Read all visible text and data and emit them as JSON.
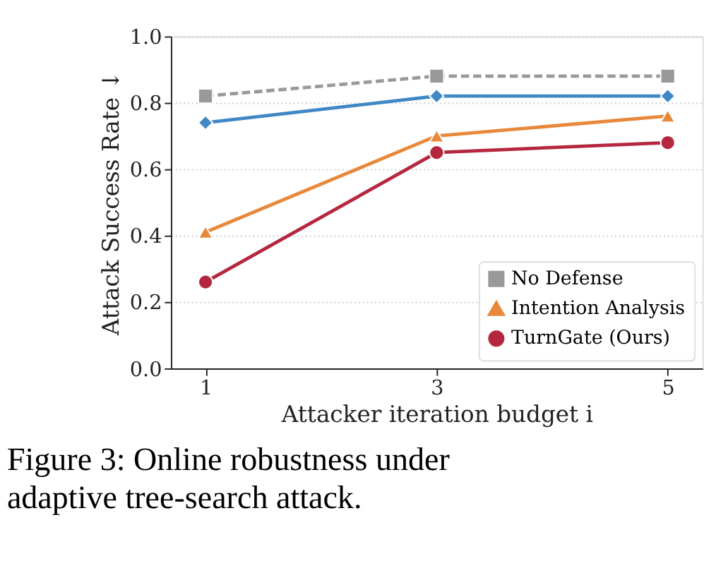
{
  "chart_data": {
    "type": "line",
    "xlabel": "Attacker iteration budget i",
    "ylabel": "Attack Success Rate ↓",
    "x": [
      1,
      3,
      5
    ],
    "xlim": [
      0.7,
      5.3
    ],
    "xticks": [
      1,
      3,
      5
    ],
    "ylim": [
      0,
      1
    ],
    "yticks": [
      {
        "value": 0,
        "label": "0.0"
      },
      {
        "value": 0.2,
        "label": "0.2"
      },
      {
        "value": 0.4,
        "label": "0.4"
      },
      {
        "value": 0.6,
        "label": "0.6"
      },
      {
        "value": 0.8,
        "label": "0.8"
      },
      {
        "value": 1,
        "label": "1.0"
      }
    ],
    "grid": "y",
    "legend": "bottom right",
    "series": [
      {
        "name": "No Defense",
        "color": "#999999",
        "values": [
          0.82,
          0.88,
          0.88
        ],
        "marker": "square",
        "line_style": "dashed"
      },
      {
        "name": "Intention Analysis",
        "color": "#e8883a",
        "values": [
          0.41,
          0.7,
          0.76
        ],
        "marker": "triangle",
        "line_style": "solid"
      },
      {
        "color": "#3f88c5",
        "values": [
          0.74,
          0.82,
          0.82
        ],
        "marker": "diamond",
        "line_style": "solid"
      },
      {
        "name": "TurnGate (Ours)",
        "color": "#b5273f",
        "values": [
          0.26,
          0.65,
          0.68
        ],
        "marker": "circle",
        "line_style": "solid"
      }
    ],
    "annotations": [
      "Figure 3:  Online robustness under adaptive tree-search attack."
    ]
  }
}
